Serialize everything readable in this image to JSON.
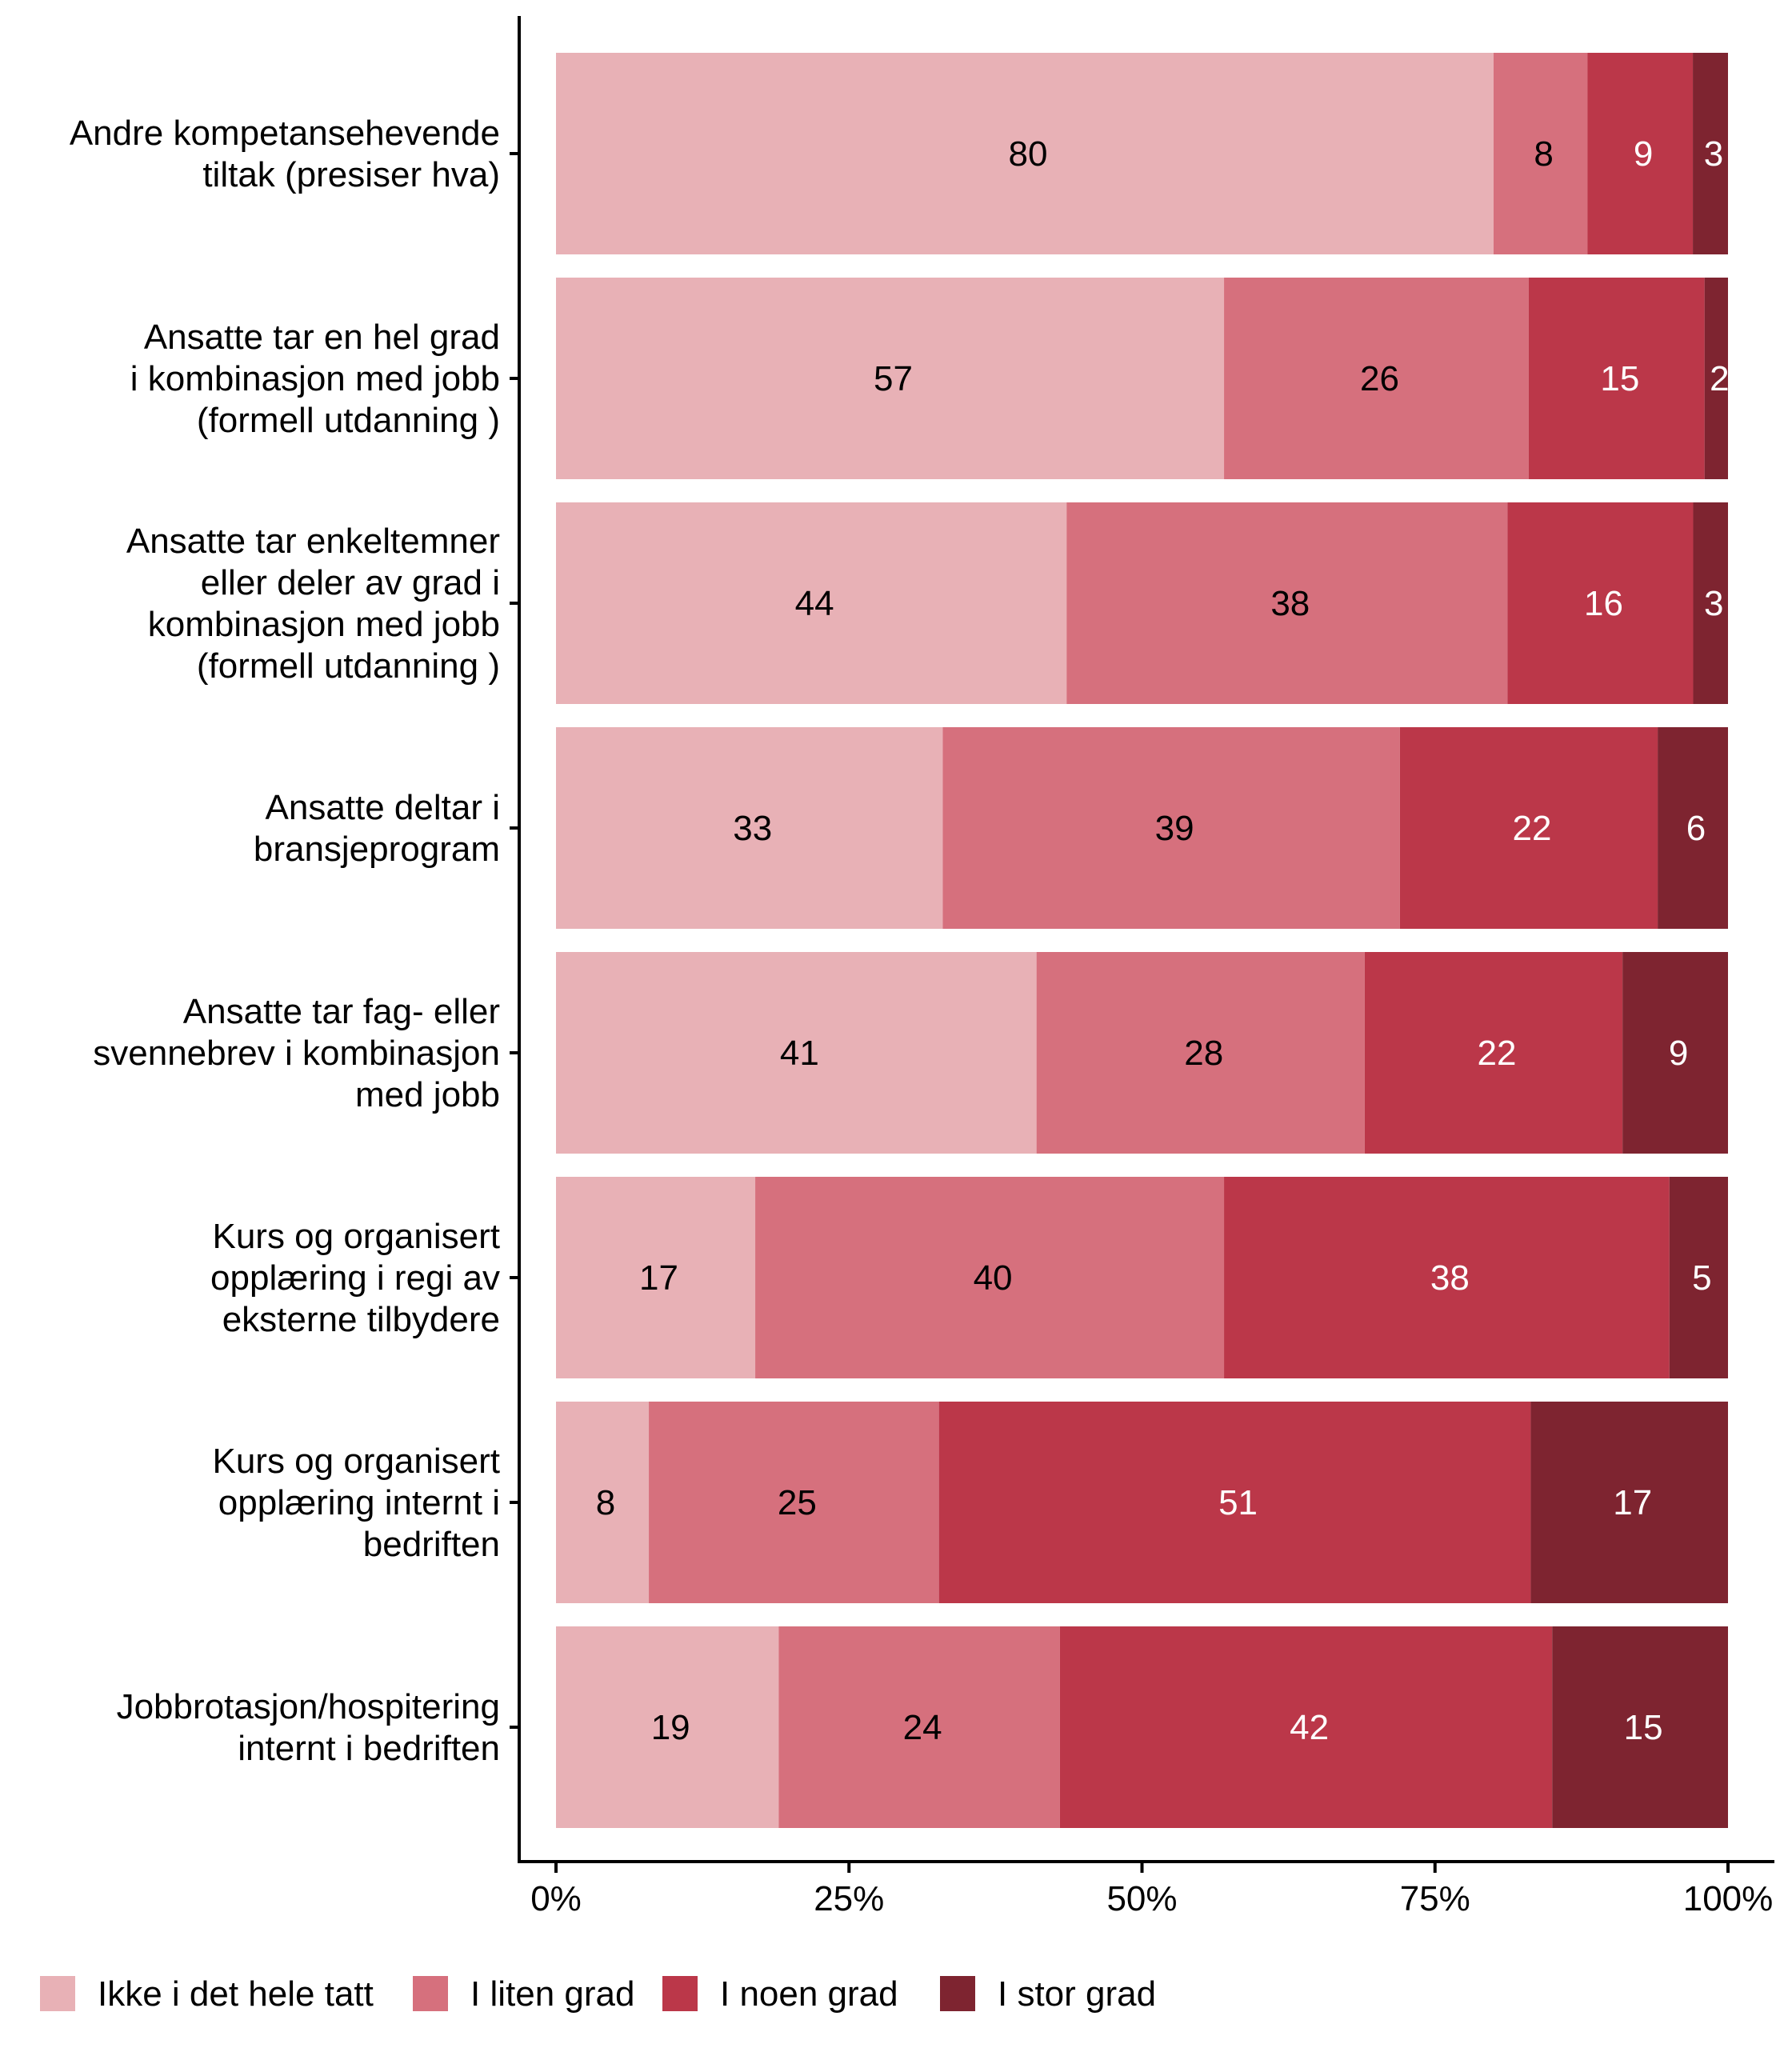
{
  "chart_data": {
    "type": "bar",
    "orientation": "horizontal",
    "stacked": "percent",
    "categories": [
      "Andre kompetansehevende\ntiltak (presiser hva)",
      "Ansatte tar en hel grad\ni kombinasjon med jobb\n(formell utdanning )",
      "Ansatte tar enkeltemner\neller deler av grad i\nkombinasjon med jobb\n(formell utdanning )",
      "Ansatte deltar i\nbransjeprogram",
      "Ansatte tar fag- eller\nsvennebrev i kombinasjon\nmed jobb",
      "Kurs og organisert\nopplæring i regi av\neksterne tilbydere",
      "Kurs og organisert\nopplæring internt i\nbedriften",
      "Jobbrotasjon/hospitering\ninternt i bedriften"
    ],
    "series": [
      {
        "name": "Ikke i det hele tatt",
        "color": "#E8B1B6",
        "label_color": "#000000",
        "values": [
          80,
          57,
          44,
          33,
          41,
          17,
          8,
          19
        ]
      },
      {
        "name": "I liten grad",
        "color": "#D6707D",
        "label_color": "#000000",
        "values": [
          8,
          26,
          38,
          39,
          28,
          40,
          25,
          24
        ]
      },
      {
        "name": "I noen grad",
        "color": "#BB3749",
        "label_color": "#FFFFFF",
        "values": [
          9,
          15,
          16,
          22,
          22,
          38,
          51,
          42
        ]
      },
      {
        "name": "I stor grad",
        "color": "#7E2430",
        "label_color": "#FFFFFF",
        "values": [
          3,
          2,
          3,
          6,
          9,
          5,
          17,
          15
        ]
      }
    ],
    "xticks": [
      "0%",
      "25%",
      "50%",
      "75%",
      "100%"
    ],
    "xlim": [
      0,
      100
    ],
    "xlabel": "",
    "ylabel": "",
    "grid": false,
    "legend_position": "bottom"
  }
}
